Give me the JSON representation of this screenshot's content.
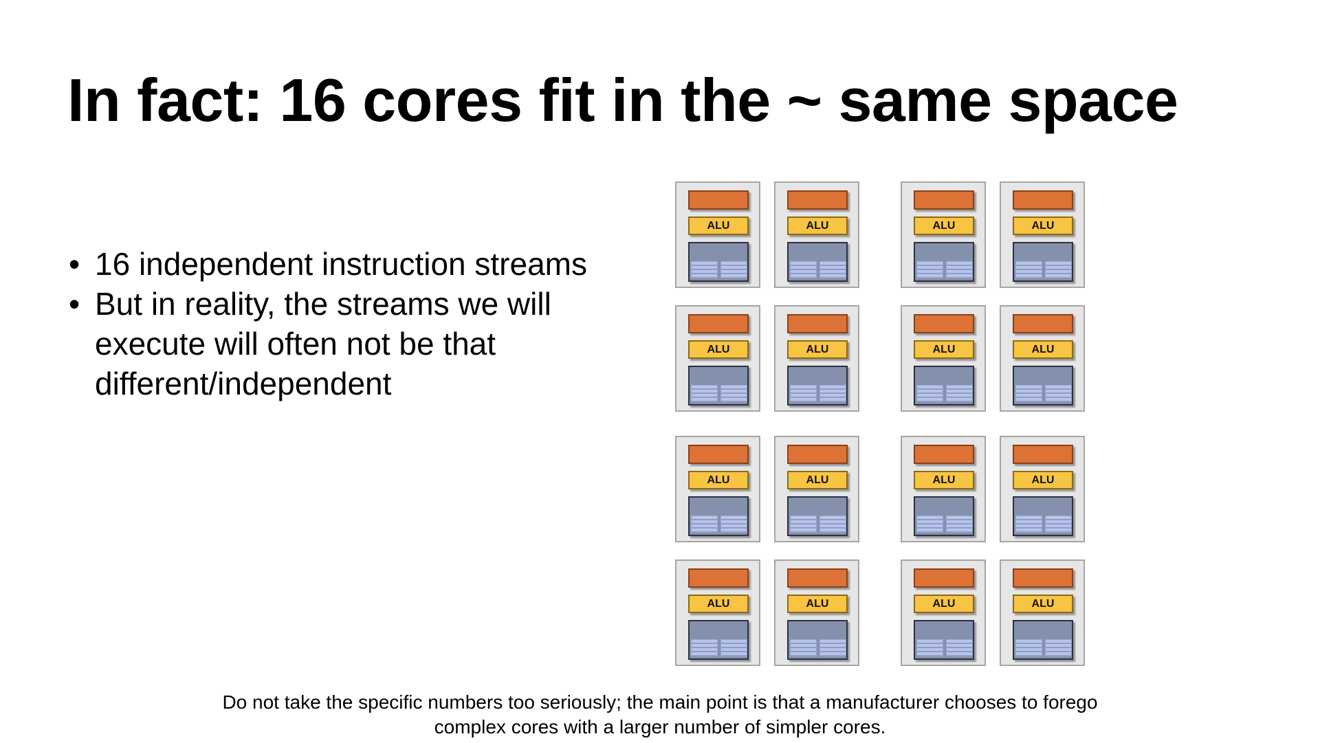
{
  "slide": {
    "title": "In fact: 16 cores fit in the ~ same space",
    "bullets": [
      "16 independent instruction streams",
      "But in reality, the streams we will execute will often not be that different/independent"
    ],
    "footnote": {
      "line1": "Do not take the specific numbers too seriously; the main point is that a manufacturer chooses to forego",
      "line2": "complex cores with a larger number of simpler cores."
    }
  },
  "core_diagram": {
    "core_count": 16,
    "rows": 4,
    "cols": 4,
    "alu_label": "ALU",
    "colors": {
      "fetch_decode": "#dd7236",
      "alu": "#f7c443",
      "context": "#8590ad",
      "core_background": "#e6e6e6"
    }
  }
}
